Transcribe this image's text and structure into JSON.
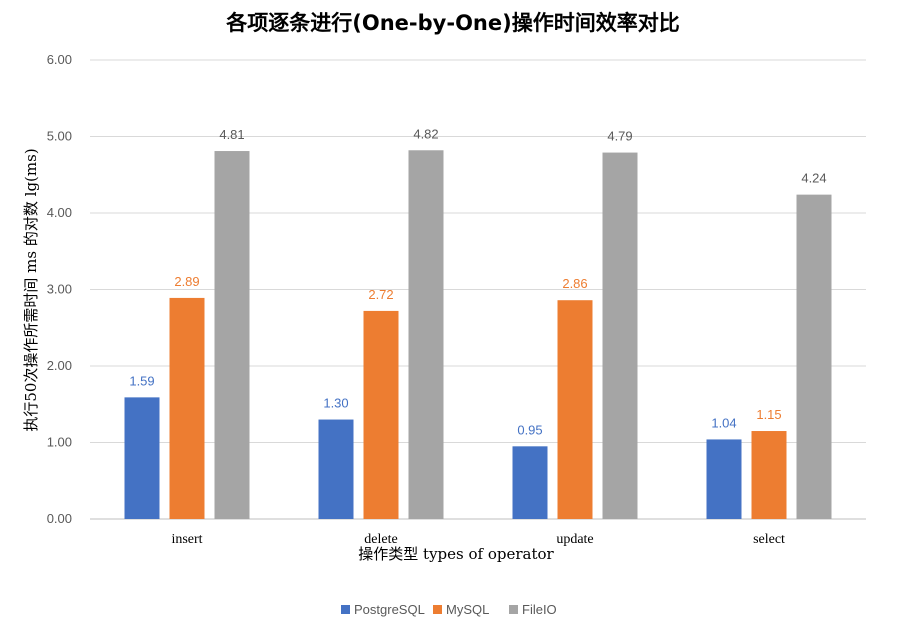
{
  "chart_data": {
    "type": "bar",
    "title": "各项逐条进行(One-by-One)操作时间效率对比",
    "xlabel": "操作类型 types of operator",
    "ylabel": "执行50次操作所需时间 ms 的对数 lg(ms)",
    "categories": [
      "insert",
      "delete",
      "update",
      "select"
    ],
    "ylim": [
      0,
      6
    ],
    "yticks": [
      "0.00",
      "1.00",
      "2.00",
      "3.00",
      "4.00",
      "5.00",
      "6.00"
    ],
    "grid": true,
    "legend_position": "bottom",
    "series": [
      {
        "name": "PostgreSQL",
        "color": "#4472c4",
        "values": [
          1.59,
          1.3,
          0.95,
          1.04
        ],
        "labels": [
          "1.59",
          "1.30",
          "0.95",
          "1.04"
        ]
      },
      {
        "name": "MySQL",
        "color": "#ed7d31",
        "values": [
          2.89,
          2.72,
          2.86,
          1.15
        ],
        "labels": [
          "2.89",
          "2.72",
          "2.86",
          "1.15"
        ]
      },
      {
        "name": "FileIO",
        "color": "#a5a5a5",
        "values": [
          4.81,
          4.82,
          4.79,
          4.24
        ],
        "labels": [
          "4.81",
          "4.82",
          "4.79",
          "4.24"
        ]
      }
    ]
  }
}
